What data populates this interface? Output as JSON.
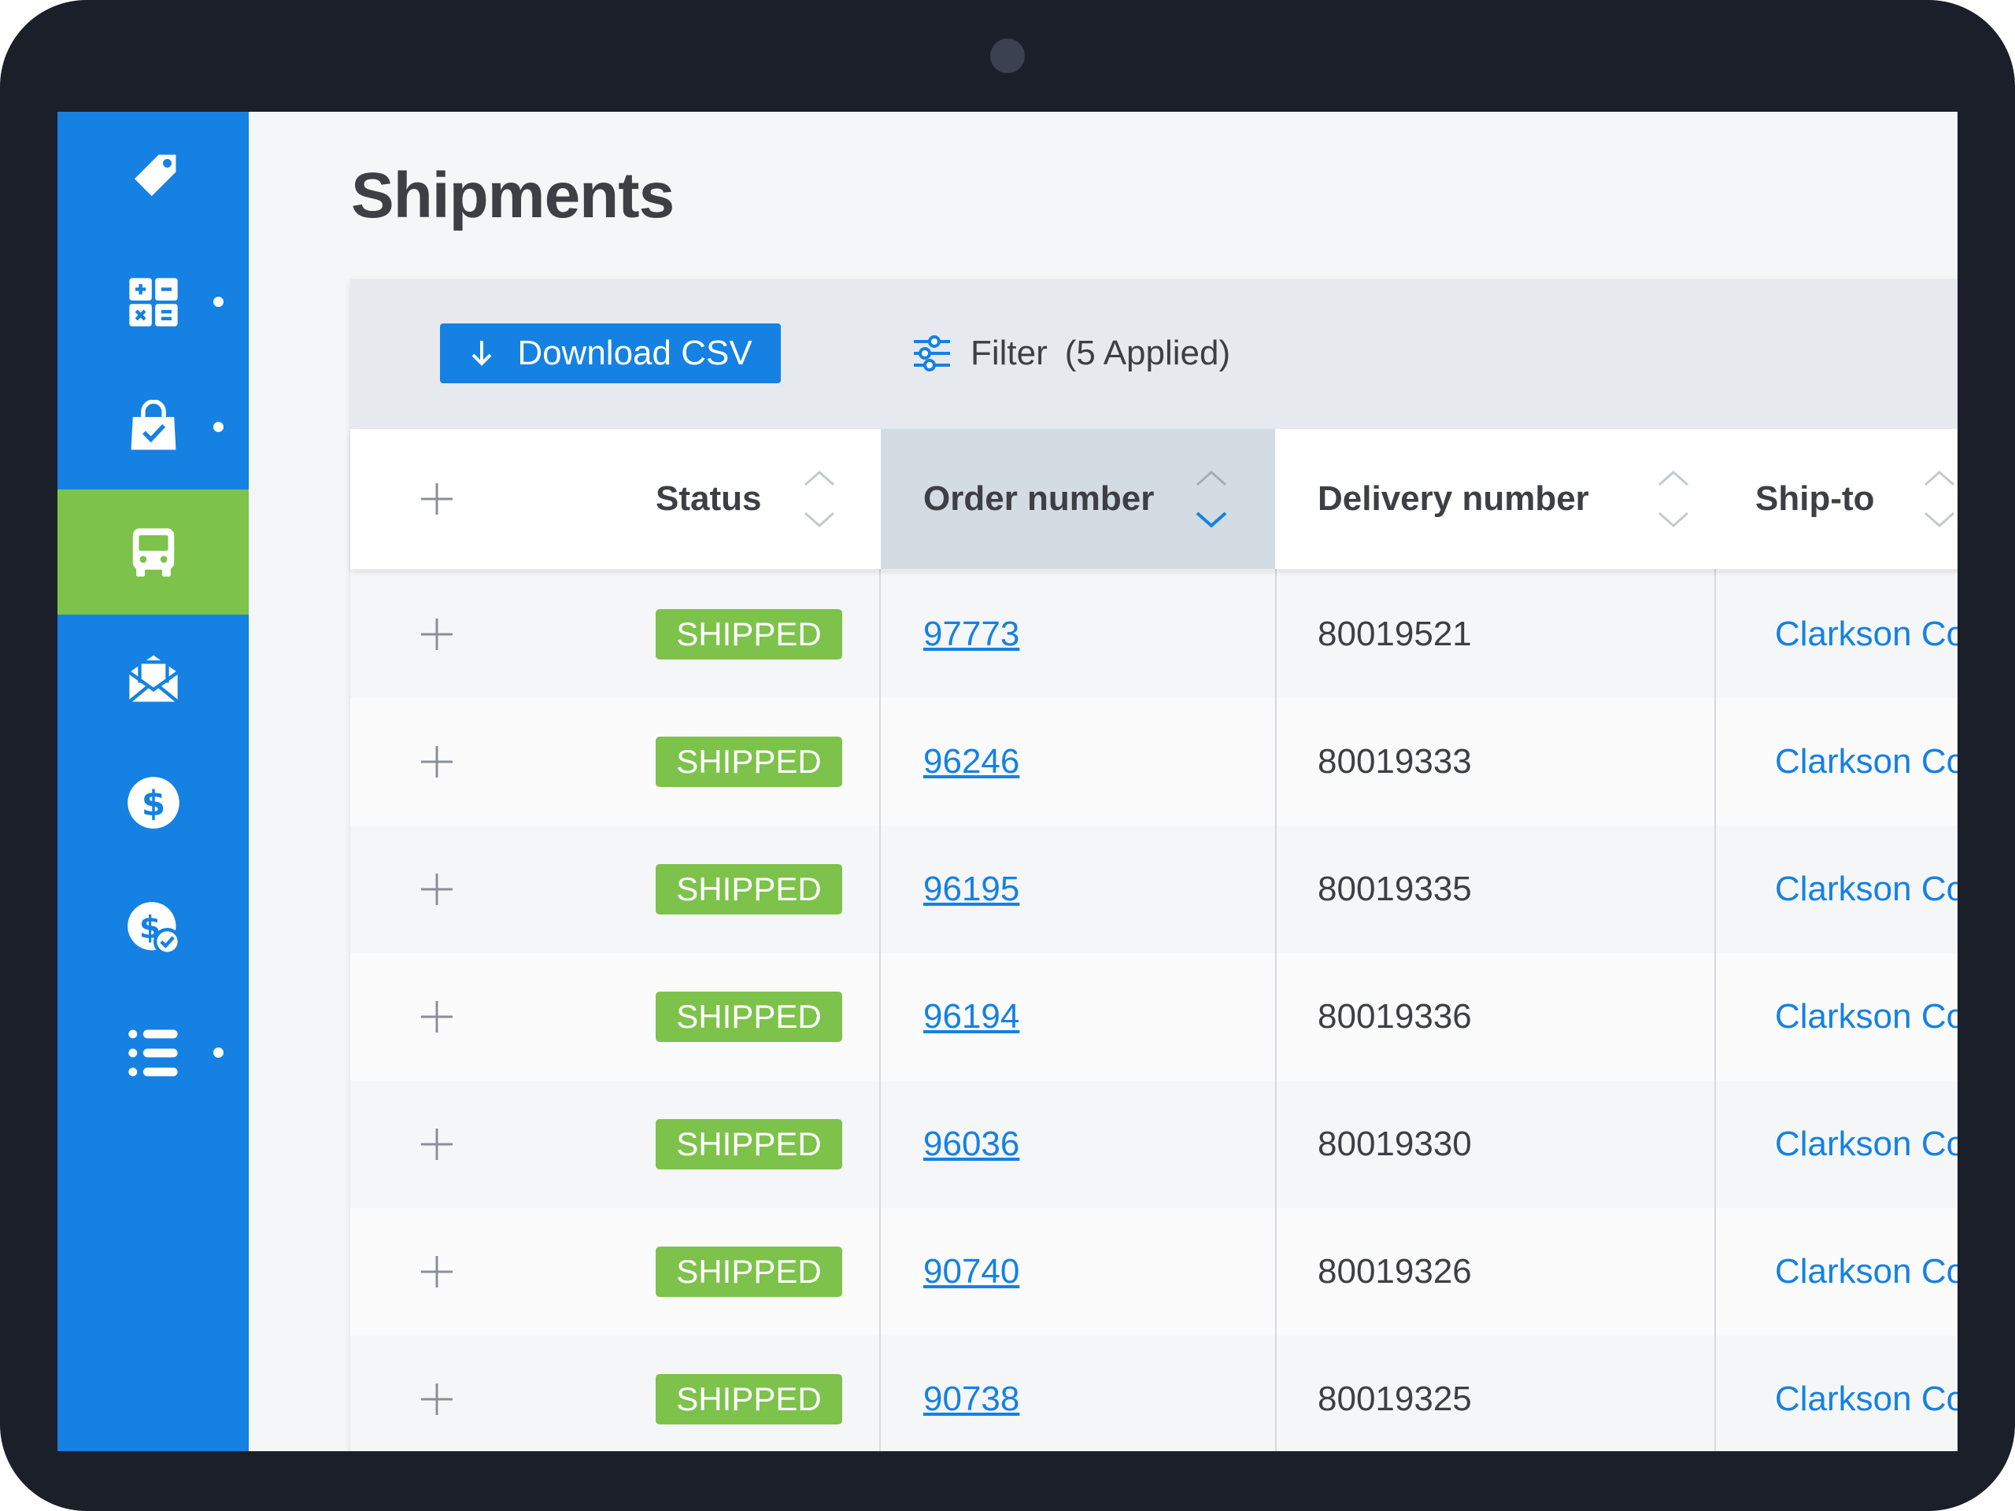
{
  "page": {
    "title": "Shipments"
  },
  "sidebar": {
    "items": [
      {
        "icon": "tag-icon",
        "dot": false,
        "active": false
      },
      {
        "icon": "calculator-icon",
        "dot": true,
        "active": false
      },
      {
        "icon": "shopping-bag-check-icon",
        "dot": true,
        "active": false
      },
      {
        "icon": "bus-icon",
        "dot": false,
        "active": true
      },
      {
        "icon": "open-envelope-icon",
        "dot": false,
        "active": false
      },
      {
        "icon": "dollar-circle-icon",
        "dot": false,
        "active": false
      },
      {
        "icon": "dollar-check-icon",
        "dot": false,
        "active": false
      },
      {
        "icon": "list-icon",
        "dot": true,
        "active": false
      }
    ]
  },
  "toolbar": {
    "download_label": "Download CSV",
    "filter_label": "Filter",
    "filter_applied": "(5 Applied)"
  },
  "table": {
    "columns": {
      "status": "Status",
      "order_number": "Order number",
      "delivery_number": "Delivery number",
      "ship_to": "Ship-to"
    },
    "sorted_column": "order_number",
    "rows": [
      {
        "status": "SHIPPED",
        "order": "97773",
        "delivery": "80019521",
        "ship_to": "Clarkson Co"
      },
      {
        "status": "SHIPPED",
        "order": "96246",
        "delivery": "80019333",
        "ship_to": "Clarkson Co"
      },
      {
        "status": "SHIPPED",
        "order": "96195",
        "delivery": "80019335",
        "ship_to": "Clarkson Co"
      },
      {
        "status": "SHIPPED",
        "order": "96194",
        "delivery": "80019336",
        "ship_to": "Clarkson Co"
      },
      {
        "status": "SHIPPED",
        "order": "96036",
        "delivery": "80019330",
        "ship_to": "Clarkson Co"
      },
      {
        "status": "SHIPPED",
        "order": "90740",
        "delivery": "80019326",
        "ship_to": "Clarkson Co"
      },
      {
        "status": "SHIPPED",
        "order": "90738",
        "delivery": "80019325",
        "ship_to": "Clarkson Co"
      }
    ]
  },
  "colors": {
    "sidebar": "#1581e3",
    "active_nav": "#7dc24a",
    "badge": "#7dc24a",
    "link": "#1581e3",
    "frame": "#1b1f2a"
  }
}
